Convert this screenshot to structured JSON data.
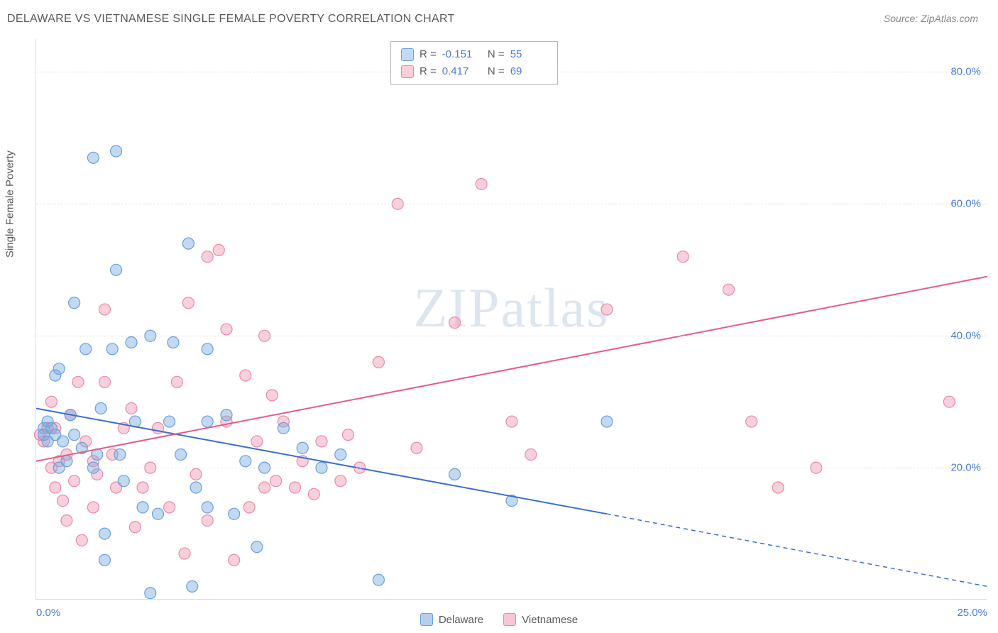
{
  "title": "DELAWARE VS VIETNAMESE SINGLE FEMALE POVERTY CORRELATION CHART",
  "source": "Source: ZipAtlas.com",
  "ylabel": "Single Female Poverty",
  "watermark_a": "ZIP",
  "watermark_b": "atlas",
  "colors": {
    "series1_fill": "rgba(120,170,225,0.45)",
    "series1_stroke": "#6aa0dd",
    "series2_fill": "rgba(240,150,175,0.45)",
    "series2_stroke": "#e88aa6",
    "trend1": "#3b6fd0",
    "trend2": "#e65b8a",
    "axis_text": "#4a7dd6",
    "grid": "#e0e0e0",
    "title_color": "#5a5a5a",
    "source_color": "#888888"
  },
  "chart": {
    "type": "scatter",
    "xlim": [
      0,
      25
    ],
    "ylim": [
      0,
      85
    ],
    "xticks": [
      {
        "v": 0,
        "l": "0.0%"
      },
      {
        "v": 25,
        "l": "25.0%"
      }
    ],
    "yticks": [
      {
        "v": 20,
        "l": "20.0%"
      },
      {
        "v": 40,
        "l": "40.0%"
      },
      {
        "v": 60,
        "l": "60.0%"
      },
      {
        "v": 80,
        "l": "80.0%"
      }
    ],
    "marker_size": 16,
    "series": [
      {
        "name": "Delaware",
        "R": "-0.151",
        "N": "55",
        "trend": {
          "x1": 0,
          "y1": 29,
          "x2": 15,
          "y2": 13,
          "dash_x2": 25,
          "dash_y2": 2
        },
        "points": [
          [
            0.2,
            26
          ],
          [
            0.2,
            25
          ],
          [
            0.3,
            24
          ],
          [
            0.3,
            27
          ],
          [
            0.4,
            26
          ],
          [
            0.5,
            34
          ],
          [
            0.5,
            25
          ],
          [
            0.6,
            20
          ],
          [
            0.6,
            35
          ],
          [
            0.7,
            24
          ],
          [
            0.8,
            21
          ],
          [
            0.9,
            28
          ],
          [
            1.0,
            25
          ],
          [
            1.0,
            45
          ],
          [
            1.2,
            23
          ],
          [
            1.3,
            38
          ],
          [
            1.5,
            67
          ],
          [
            1.5,
            20
          ],
          [
            1.6,
            22
          ],
          [
            1.7,
            29
          ],
          [
            1.8,
            6
          ],
          [
            1.8,
            10
          ],
          [
            2.0,
            38
          ],
          [
            2.1,
            68
          ],
          [
            2.1,
            50
          ],
          [
            2.2,
            22
          ],
          [
            2.3,
            18
          ],
          [
            2.5,
            39
          ],
          [
            2.6,
            27
          ],
          [
            2.8,
            14
          ],
          [
            3.0,
            40
          ],
          [
            3.0,
            1
          ],
          [
            3.2,
            13
          ],
          [
            3.5,
            27
          ],
          [
            3.6,
            39
          ],
          [
            3.8,
            22
          ],
          [
            4.0,
            54
          ],
          [
            4.1,
            2
          ],
          [
            4.2,
            17
          ],
          [
            4.5,
            14
          ],
          [
            4.5,
            27
          ],
          [
            4.5,
            38
          ],
          [
            5.0,
            28
          ],
          [
            5.2,
            13
          ],
          [
            5.5,
            21
          ],
          [
            5.8,
            8
          ],
          [
            6.0,
            20
          ],
          [
            6.5,
            26
          ],
          [
            7.0,
            23
          ],
          [
            7.5,
            20
          ],
          [
            8.0,
            22
          ],
          [
            9.0,
            3
          ],
          [
            11.0,
            19
          ],
          [
            12.5,
            15
          ],
          [
            15.0,
            27
          ]
        ]
      },
      {
        "name": "Vietnamese",
        "R": "0.417",
        "N": "69",
        "trend": {
          "x1": 0,
          "y1": 21,
          "x2": 25,
          "y2": 49
        },
        "points": [
          [
            0.1,
            25
          ],
          [
            0.2,
            24
          ],
          [
            0.3,
            26
          ],
          [
            0.4,
            20
          ],
          [
            0.4,
            30
          ],
          [
            0.5,
            17
          ],
          [
            0.5,
            26
          ],
          [
            0.6,
            21
          ],
          [
            0.7,
            15
          ],
          [
            0.8,
            12
          ],
          [
            0.8,
            22
          ],
          [
            0.9,
            28
          ],
          [
            1.0,
            18
          ],
          [
            1.1,
            33
          ],
          [
            1.2,
            9
          ],
          [
            1.3,
            24
          ],
          [
            1.5,
            14
          ],
          [
            1.5,
            21
          ],
          [
            1.6,
            19
          ],
          [
            1.8,
            33
          ],
          [
            1.8,
            44
          ],
          [
            2.0,
            22
          ],
          [
            2.1,
            17
          ],
          [
            2.3,
            26
          ],
          [
            2.5,
            29
          ],
          [
            2.6,
            11
          ],
          [
            2.8,
            17
          ],
          [
            3.0,
            20
          ],
          [
            3.2,
            26
          ],
          [
            3.5,
            14
          ],
          [
            3.7,
            33
          ],
          [
            3.9,
            7
          ],
          [
            4.0,
            45
          ],
          [
            4.2,
            19
          ],
          [
            4.5,
            12
          ],
          [
            4.5,
            52
          ],
          [
            4.8,
            53
          ],
          [
            5.0,
            27
          ],
          [
            5.0,
            41
          ],
          [
            5.2,
            6
          ],
          [
            5.5,
            34
          ],
          [
            5.6,
            14
          ],
          [
            5.8,
            24
          ],
          [
            6.0,
            17
          ],
          [
            6.0,
            40
          ],
          [
            6.2,
            31
          ],
          [
            6.3,
            18
          ],
          [
            6.5,
            27
          ],
          [
            6.8,
            17
          ],
          [
            7.0,
            21
          ],
          [
            7.3,
            16
          ],
          [
            7.5,
            24
          ],
          [
            8.0,
            18
          ],
          [
            8.2,
            25
          ],
          [
            8.5,
            20
          ],
          [
            9.0,
            36
          ],
          [
            9.5,
            60
          ],
          [
            10.0,
            23
          ],
          [
            11.0,
            42
          ],
          [
            11.7,
            63
          ],
          [
            12.5,
            27
          ],
          [
            13.0,
            22
          ],
          [
            15.0,
            44
          ],
          [
            17.0,
            52
          ],
          [
            18.2,
            47
          ],
          [
            18.8,
            27
          ],
          [
            19.5,
            17
          ],
          [
            20.5,
            20
          ],
          [
            24.0,
            30
          ]
        ]
      }
    ]
  },
  "legend_bottom": [
    {
      "label": "Delaware",
      "sw_fill": "rgba(120,170,225,0.55)",
      "sw_stroke": "#6aa0dd"
    },
    {
      "label": "Vietnamese",
      "sw_fill": "rgba(240,150,175,0.55)",
      "sw_stroke": "#e88aa6"
    }
  ]
}
